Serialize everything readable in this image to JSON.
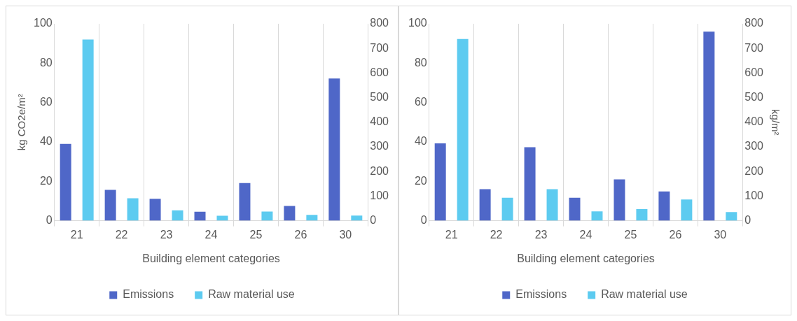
{
  "chart_data": [
    {
      "type": "bar",
      "categories": [
        "21",
        "22",
        "23",
        "24",
        "25",
        "26",
        "30"
      ],
      "xlabel": "Building element categories",
      "ylabel": "kg CO2e/m²",
      "ylim": [
        0,
        100
      ],
      "yticks": [
        0,
        20,
        40,
        60,
        80,
        100
      ],
      "y2lim": [
        0,
        800
      ],
      "y2ticks": [
        0,
        100,
        200,
        300,
        400,
        500,
        600,
        700,
        800
      ],
      "grid": "x",
      "legend": "bottom",
      "series": [
        {
          "name": "Emissions",
          "color": "#4f67c8",
          "values": [
            39,
            15.7,
            11.1,
            4.6,
            19.1,
            7.5,
            72.2
          ]
        },
        {
          "name": "Raw material use",
          "color": "#5dcbf0",
          "axis": "y2",
          "values": [
            736,
            91,
            42,
            20,
            37,
            24,
            21
          ]
        }
      ]
    },
    {
      "type": "bar",
      "categories": [
        "21",
        "22",
        "23",
        "24",
        "25",
        "26",
        "30"
      ],
      "xlabel": "Building element categories",
      "y2label": "kg/m²",
      "ylim": [
        0,
        100
      ],
      "yticks": [
        0,
        20,
        40,
        60,
        80,
        100
      ],
      "y2lim": [
        0,
        800
      ],
      "y2ticks": [
        0,
        100,
        200,
        300,
        400,
        500,
        600,
        700,
        800
      ],
      "grid": "x",
      "legend": "bottom",
      "series": [
        {
          "name": "Emissions",
          "color": "#4f67c8",
          "values": [
            39.3,
            16,
            37.3,
            11.7,
            21,
            14.9,
            96
          ]
        },
        {
          "name": "Raw material use",
          "color": "#5dcbf0",
          "axis": "y2",
          "values": [
            738,
            93,
            128,
            38,
            47,
            86,
            35
          ]
        }
      ]
    }
  ]
}
